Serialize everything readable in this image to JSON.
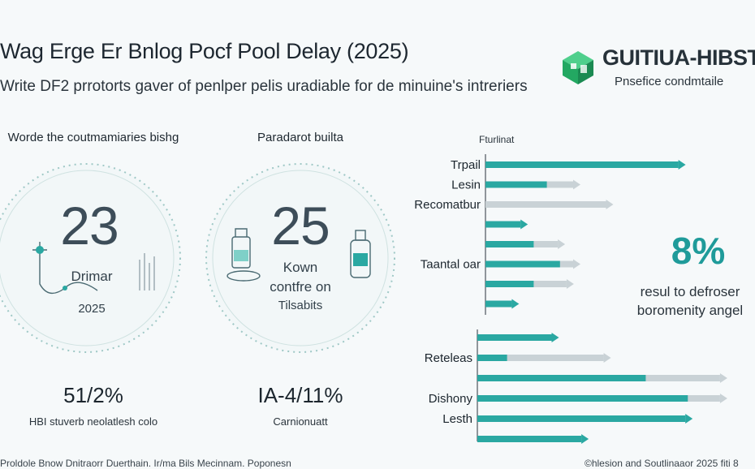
{
  "header": {
    "title": "Wag Erge Er Bnlog Pocf Pool Delay (2025)",
    "subtitle": "Write DF2 prrotorts gaver of penlper pelis uradiable for de minuine's intreriers"
  },
  "brand": {
    "name": "GUITIUA-HIBST",
    "tagline": "Pnsefice condmtaile",
    "logo_icon": "cube-logo-icon",
    "logo_color": "#2bb673"
  },
  "panel_left": {
    "heading": "Worde the coutmamiaries bishg",
    "big_number": "23",
    "line1": "Drimar",
    "line2": "2025",
    "stat_value": "51/2%",
    "stat_label": "HBI stuverb neolatlesh colo"
  },
  "panel_mid": {
    "heading": "Paradarot builta",
    "big_number": "25",
    "line1": "Kown",
    "line2": "contfre on",
    "line3": "Tilsabits",
    "stat_value": "IA-4/11%",
    "stat_label": "Carnionuatt"
  },
  "side_stat": {
    "value": "8%",
    "line1": "resul to defroser",
    "line2": "boromenity angel"
  },
  "footer": {
    "left": "Proldole Bnow Dnitraorr Duerthain. Ir/ma Bils Mecinnam. Poponesn",
    "right": "©hlesion and Soutlinaaor 2025 fiti 8"
  },
  "colors": {
    "teal": "#2aa8a2",
    "light_teal": "#7fd0c8",
    "gray_bar": "#c9d2d6",
    "accent": "#1f9b9a"
  },
  "chart_data": {
    "type": "bar",
    "orientation": "horizontal",
    "title": "Fturlinat",
    "xlim": [
      0,
      100
    ],
    "group_top": {
      "rows": [
        {
          "label": "Trpail",
          "teal": 88,
          "gray": 88
        },
        {
          "label": "Lesin",
          "teal": 28,
          "gray": 40
        },
        {
          "label": "Recomatbur",
          "teal": 0,
          "gray": 55
        },
        {
          "label": "",
          "teal": 16,
          "gray": 16
        },
        {
          "label": "",
          "teal": 22,
          "gray": 33
        },
        {
          "label": "Taantal oar",
          "teal": 34,
          "gray": 40
        },
        {
          "label": "",
          "teal": 22,
          "gray": 37
        },
        {
          "label": "",
          "teal": 12,
          "gray": 12
        }
      ]
    },
    "group_bottom": {
      "rows": [
        {
          "label": "",
          "teal": 30,
          "gray": 30
        },
        {
          "label": "Reteleas",
          "teal": 12,
          "gray": 51
        },
        {
          "label": "",
          "teal": 68,
          "gray": 98
        },
        {
          "label": "Dishony",
          "teal": 85,
          "gray": 98
        },
        {
          "label": "Lesth",
          "teal": 84,
          "gray": 84
        },
        {
          "label": "",
          "teal": 42,
          "gray": 42
        }
      ]
    }
  }
}
